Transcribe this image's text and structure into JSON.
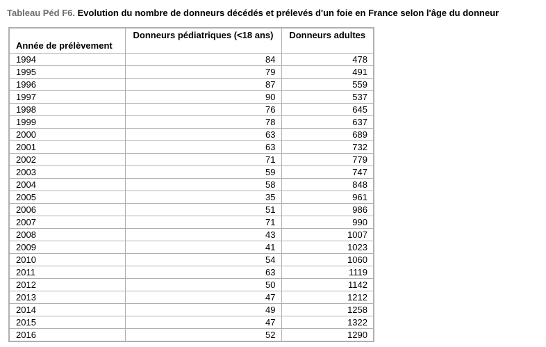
{
  "page": {
    "title_label": "Tableau Péd F6.",
    "title_text": "Evolution du nombre de donneurs décédés et prélevés d'un foie en France selon l'âge du donneur"
  },
  "table": {
    "columns": [
      "Année de prélèvement",
      "Donneurs pédiatriques (<18 ans)",
      "Donneurs adultes"
    ],
    "rows": [
      [
        "1994",
        "84",
        "478"
      ],
      [
        "1995",
        "79",
        "491"
      ],
      [
        "1996",
        "87",
        "559"
      ],
      [
        "1997",
        "90",
        "537"
      ],
      [
        "1998",
        "76",
        "645"
      ],
      [
        "1999",
        "78",
        "637"
      ],
      [
        "2000",
        "63",
        "689"
      ],
      [
        "2001",
        "63",
        "732"
      ],
      [
        "2002",
        "71",
        "779"
      ],
      [
        "2003",
        "59",
        "747"
      ],
      [
        "2004",
        "58",
        "848"
      ],
      [
        "2005",
        "35",
        "961"
      ],
      [
        "2006",
        "51",
        "986"
      ],
      [
        "2007",
        "71",
        "990"
      ],
      [
        "2008",
        "43",
        "1007"
      ],
      [
        "2009",
        "41",
        "1023"
      ],
      [
        "2010",
        "54",
        "1060"
      ],
      [
        "2011",
        "63",
        "1119"
      ],
      [
        "2012",
        "50",
        "1142"
      ],
      [
        "2013",
        "47",
        "1212"
      ],
      [
        "2014",
        "49",
        "1258"
      ],
      [
        "2015",
        "47",
        "1322"
      ],
      [
        "2016",
        "52",
        "1290"
      ]
    ]
  },
  "colors": {
    "title_label": "#6d6d6d",
    "text": "#000000",
    "border": "#b0b0b0",
    "background": "#ffffff"
  },
  "chart_data": {
    "type": "table",
    "title": "Tableau Péd F6. Evolution du nombre de donneurs décédés et prélevés d'un foie en France selon l'âge du donneur",
    "categories": [
      "1994",
      "1995",
      "1996",
      "1997",
      "1998",
      "1999",
      "2000",
      "2001",
      "2002",
      "2003",
      "2004",
      "2005",
      "2006",
      "2007",
      "2008",
      "2009",
      "2010",
      "2011",
      "2012",
      "2013",
      "2014",
      "2015",
      "2016"
    ],
    "series": [
      {
        "name": "Donneurs pédiatriques (<18 ans)",
        "values": [
          84,
          79,
          87,
          90,
          76,
          78,
          63,
          63,
          71,
          59,
          58,
          35,
          51,
          71,
          43,
          41,
          54,
          63,
          50,
          47,
          49,
          47,
          52
        ]
      },
      {
        "name": "Donneurs adultes",
        "values": [
          478,
          491,
          559,
          537,
          645,
          637,
          689,
          732,
          779,
          747,
          848,
          961,
          986,
          990,
          1007,
          1023,
          1060,
          1119,
          1142,
          1212,
          1258,
          1322,
          1290
        ]
      }
    ]
  }
}
